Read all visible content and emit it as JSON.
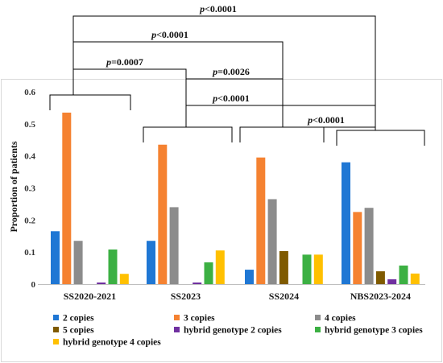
{
  "chart_data": {
    "type": "bar",
    "title": "",
    "xlabel": "",
    "ylabel": "Proportion of patients",
    "ylim": [
      0,
      0.6
    ],
    "yticks": [
      "0",
      "0.1",
      "0.2",
      "0.3",
      "0.4",
      "0.5",
      "0.6"
    ],
    "grid": false,
    "legend_position": "bottom",
    "categories": [
      "SS2020-2021",
      "SS2023",
      "SS2024",
      "NBS2023-2024"
    ],
    "series": [
      {
        "name": "2 copies",
        "color": "#1f77d4",
        "values": [
          0.165,
          0.135,
          0.045,
          0.38
        ]
      },
      {
        "name": "3 copies",
        "color": "#f58231",
        "values": [
          0.535,
          0.435,
          0.395,
          0.225
        ]
      },
      {
        "name": "4 copies",
        "color": "#8c8c8c",
        "values": [
          0.135,
          0.24,
          0.265,
          0.238
        ]
      },
      {
        "name": "5 copies",
        "color": "#7f5a00",
        "values": [
          0,
          0,
          0.103,
          0.04
        ]
      },
      {
        "name": "hybrid genotype 2 copies",
        "color": "#7030a0",
        "values": [
          0.005,
          0.005,
          0,
          0.015
        ]
      },
      {
        "name": "hybrid genotype 3 copies",
        "color": "#3cb043",
        "values": [
          0.108,
          0.068,
          0.092,
          0.058
        ]
      },
      {
        "name": "hybrid genotype 4 copies",
        "color": "#ffc000",
        "values": [
          0.032,
          0.105,
          0.092,
          0.033
        ]
      }
    ],
    "comparisons": [
      {
        "label": "p<0.0001",
        "from": "SS2020-2021",
        "to": "NBS2023-2024"
      },
      {
        "label": "p<0.0001",
        "from": "SS2020-2021",
        "to": "SS2024"
      },
      {
        "label": "p=0.0007",
        "from": "SS2020-2021",
        "to": "SS2023"
      },
      {
        "label": "p=0.0026",
        "from": "SS2023",
        "to": "SS2024"
      },
      {
        "label": "p<0.0001",
        "from": "SS2023",
        "to": "NBS2023-2024"
      },
      {
        "label": "p<0.0001",
        "from": "SS2024",
        "to": "NBS2023-2024"
      }
    ]
  }
}
